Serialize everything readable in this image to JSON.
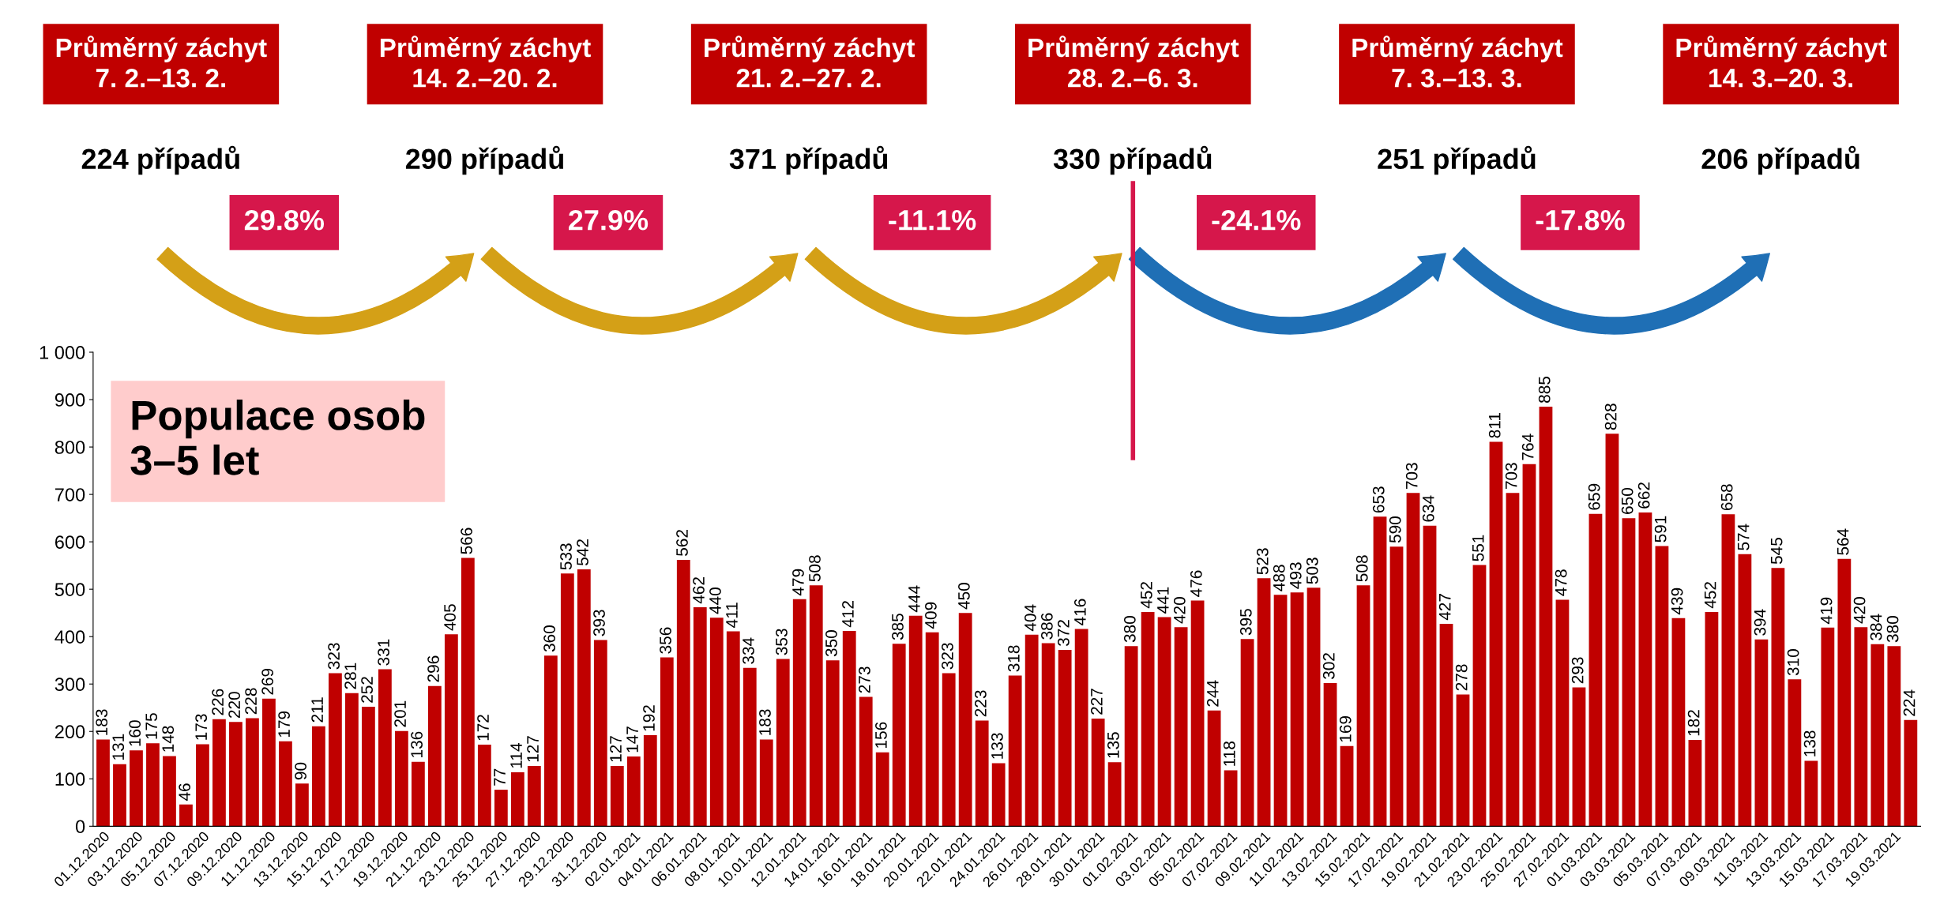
{
  "chart_data": [
    {
      "type": "other",
      "annotations": [
        "Průměrný záchyt\n7. 2.–13. 2.",
        "Průměrný záchyt\n14. 2.–20. 2.",
        "Průměrný záchyt\n21. 2.–27. 2.",
        "Průměrný záchyt\n28. 2.–6. 3.",
        "Průměrný záchyt\n7. 3.–13. 3.",
        "Průměrný záchyt\n14. 3.–20. 3.",
        "224 případů",
        "290 případů",
        "371 případů",
        "330 případů",
        "251 případů",
        "206 případů",
        "29.8%",
        "27.9%",
        "-11.1%",
        "-24.1%",
        "-17.8%"
      ]
    },
    {
      "type": "bar",
      "color": "#c00000",
      "categories": [
        "01.12.2020",
        null,
        "03.12.2020",
        null,
        "05.12.2020",
        null,
        "07.12.2020",
        null,
        "09.12.2020",
        null,
        "11.12.2020",
        null,
        "13.12.2020",
        null,
        "15.12.2020",
        null,
        "17.12.2020",
        null,
        "19.12.2020",
        null,
        "21.12.2020",
        null,
        "23.12.2020",
        null,
        "25.12.2020",
        null,
        "27.12.2020",
        null,
        "29.12.2020",
        null,
        "31.12.2020",
        null,
        "02.01.2021",
        null,
        "04.01.2021",
        null,
        "06.01.2021",
        null,
        "08.01.2021",
        null,
        "10.01.2021",
        null,
        "12.01.2021",
        null,
        "14.01.2021",
        null,
        "16.01.2021",
        null,
        "18.01.2021",
        null,
        "20.01.2021",
        null,
        "22.01.2021",
        null,
        "24.01.2021",
        null,
        "26.01.2021",
        null,
        "28.01.2021",
        null,
        "30.01.2021",
        null,
        "01.02.2021",
        null,
        "03.02.2021",
        null,
        "05.02.2021",
        null,
        "07.02.2021",
        null,
        "09.02.2021",
        null,
        "11.02.2021",
        null,
        "13.02.2021",
        null,
        "15.02.2021",
        null,
        "17.02.2021",
        null,
        "19.02.2021",
        null,
        "21.02.2021",
        null,
        "23.02.2021",
        null,
        "25.02.2021",
        null,
        "27.02.2021",
        null,
        "01.03.2021",
        null,
        "03.03.2021",
        null,
        "05.03.2021",
        null,
        "07.03.2021",
        null,
        "09.03.2021",
        null,
        "11.03.2021",
        null,
        "13.03.2021",
        null,
        "15.03.2021",
        null,
        "17.03.2021",
        null,
        "19.03.2021",
        null
      ],
      "values": [
        183,
        131,
        160,
        175,
        148,
        46,
        173,
        226,
        220,
        228,
        269,
        179,
        90,
        211,
        323,
        281,
        252,
        331,
        201,
        136,
        296,
        405,
        566,
        172,
        77,
        114,
        127,
        360,
        533,
        542,
        393,
        127,
        147,
        192,
        356,
        562,
        462,
        440,
        411,
        334,
        183,
        353,
        479,
        508,
        350,
        412,
        273,
        156,
        385,
        444,
        409,
        323,
        450,
        223,
        133,
        318,
        404,
        386,
        372,
        416,
        227,
        135,
        380,
        452,
        441,
        420,
        476,
        244,
        118,
        395,
        523,
        488,
        493,
        503,
        302,
        169,
        508,
        653,
        590,
        703,
        634,
        427,
        278,
        551,
        811,
        703,
        764,
        885,
        478,
        293,
        659,
        828,
        650,
        662,
        591,
        439,
        182,
        452,
        658,
        574,
        394,
        545,
        310,
        138,
        419,
        564,
        420,
        384,
        380,
        224
      ],
      "ylim": [
        0,
        1000
      ],
      "yticks": [
        0,
        100,
        200,
        300,
        400,
        500,
        600,
        700,
        800,
        900,
        {
          "value": 1000,
          "label": "1 000"
        }
      ],
      "data_labels": true,
      "grid": false,
      "annotations": [
        "Populace osob\n3–5 let"
      ]
    }
  ]
}
